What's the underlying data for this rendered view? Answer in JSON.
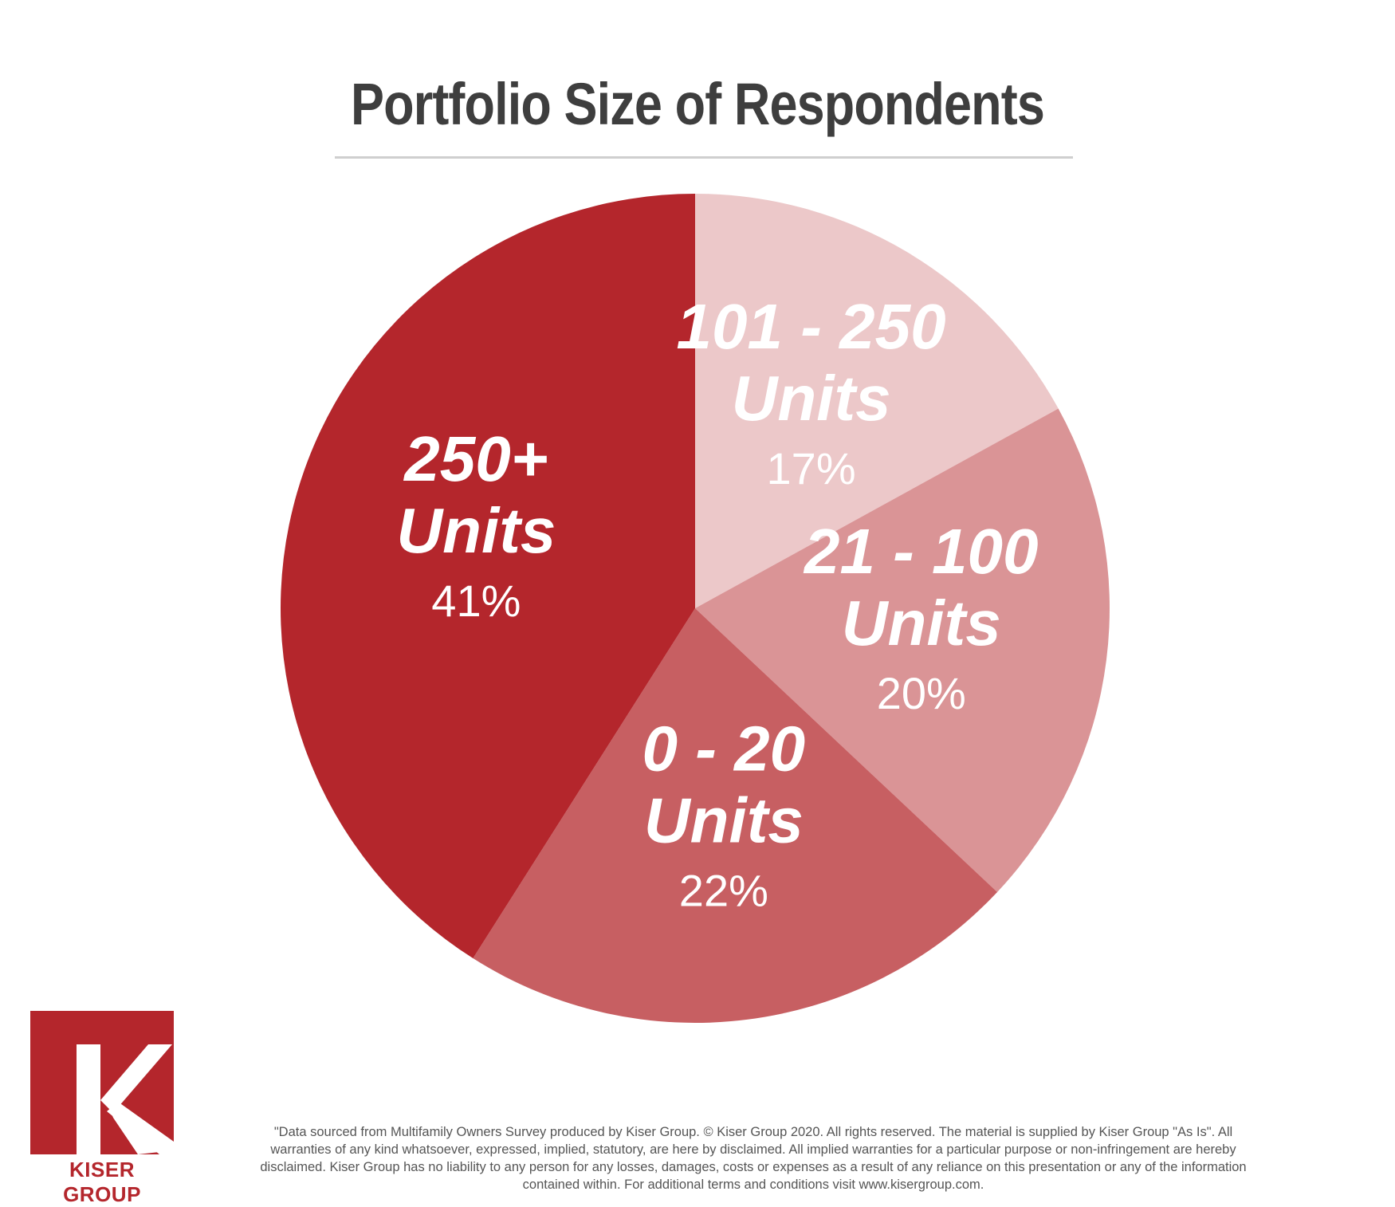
{
  "title": "Portfolio Size of Respondents",
  "chart_data": {
    "type": "pie",
    "title": "Portfolio Size of Respondents",
    "slices": [
      {
        "range": "101 - 250",
        "units": "Units",
        "pct_label": "17%",
        "value": 17,
        "color": "#ecc8c9"
      },
      {
        "range": "21 - 100",
        "units": "Units",
        "pct_label": "20%",
        "value": 20,
        "color": "#da9496"
      },
      {
        "range": "0 - 20",
        "units": "Units",
        "pct_label": "22%",
        "value": 22,
        "color": "#c75f62"
      },
      {
        "range": "250+",
        "units": "Units",
        "pct_label": "41%",
        "value": 41,
        "color": "#b4262c"
      }
    ]
  },
  "logo": {
    "text": "KISER GROUP",
    "color": "#b4262c"
  },
  "disclaimer": "\"Data sourced from Multifamily Owners Survey produced by Kiser Group. © Kiser Group 2020. All rights reserved. The material is supplied by Kiser Group \"As Is\". All warranties of any kind whatsoever, expressed, implied, statutory, are here by disclaimed. All implied warranties for a particular purpose or non-infringement are hereby disclaimed. Kiser Group has no liability to any person for any losses, damages, costs or expenses as a result of any reliance on this presentation or any of the information contained within. For additional terms and conditions visit www.kisergroup.com."
}
